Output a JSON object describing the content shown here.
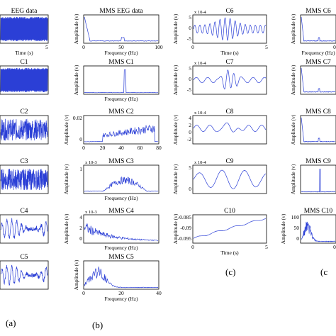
{
  "chart_data": {
    "type": "line",
    "colors": {
      "trace": "#2b3fd6",
      "axis": "#000000"
    },
    "panel_labels": [
      "(a)",
      "(b)",
      "(c)",
      "(c"
    ],
    "columns": [
      {
        "id": "a",
        "plots": [
          {
            "title": "EEG data",
            "xlabel": "Time (s)",
            "ylabel": "",
            "xticks": [
              "5"
            ],
            "yticks": [],
            "kind": "dense"
          },
          {
            "title": "C1",
            "xlabel": "",
            "ylabel": "",
            "xticks": [],
            "yticks": [],
            "kind": "dense"
          },
          {
            "title": "C2",
            "xlabel": "",
            "ylabel": "",
            "xticks": [],
            "yticks": [],
            "kind": "noise"
          },
          {
            "title": "C3",
            "xlabel": "",
            "ylabel": "",
            "xticks": [],
            "yticks": [],
            "kind": "noise"
          },
          {
            "title": "C4",
            "xlabel": "",
            "ylabel": "",
            "xticks": [],
            "yticks": [],
            "kind": "wave"
          },
          {
            "title": "C5",
            "xlabel": "",
            "ylabel": "",
            "xticks": [],
            "yticks": [],
            "kind": "wave"
          }
        ]
      },
      {
        "id": "b",
        "plots": [
          {
            "title": "MMS EEG data",
            "xlabel": "Frequency (Hz)",
            "ylabel": "Amplitude (v)",
            "xticks": [
              "0",
              "50",
              "100"
            ],
            "yticks": [],
            "exp": "",
            "kind": "spec_low"
          },
          {
            "title": "MMS C1",
            "xlabel": "Frequency (Hz)",
            "ylabel": "Amplitude (v)",
            "xticks": [],
            "yticks": [],
            "exp": "",
            "kind": "spike"
          },
          {
            "title": "MMS C2",
            "xlabel": "",
            "ylabel": "Amplitude (v)",
            "xticks": [
              "0",
              "20",
              "40",
              "60",
              "80"
            ],
            "yticks": [
              "0.02",
              "0"
            ],
            "exp": "",
            "kind": "band_high"
          },
          {
            "title": "MMS C3",
            "xlabel": "Frequency (Hz)",
            "ylabel": "Amplitude (v)",
            "xticks": [],
            "yticks": [
              "1"
            ],
            "exp": "x 10-3",
            "kind": "band_mid"
          },
          {
            "title": "MMS C4",
            "xlabel": "Frequency (Hz)",
            "ylabel": "Amplitude (v)",
            "xticks": [],
            "yticks": [
              "4",
              "2",
              "0"
            ],
            "exp": "x 10-3",
            "kind": "decay_mid"
          },
          {
            "title": "MMS C5",
            "xlabel": "Frequency (Hz)",
            "ylabel": "Amplitude (v)",
            "xticks": [
              "0",
              "20",
              "40"
            ],
            "yticks": [],
            "exp": "",
            "kind": "decay_low"
          }
        ]
      },
      {
        "id": "c",
        "plots": [
          {
            "title": "C6",
            "xlabel": "Time (s)",
            "ylabel": "Amplitude (v)",
            "xticks": [
              "0",
              "5"
            ],
            "yticks": [
              "5",
              "0",
              "-5"
            ],
            "exp": "x 10-4",
            "kind": "burst"
          },
          {
            "title": "C7",
            "xlabel": "",
            "ylabel": "Amplitude (v)",
            "xticks": [],
            "yticks": [
              "5",
              "0",
              "-5"
            ],
            "exp": "x 10-4",
            "kind": "burst_mid"
          },
          {
            "title": "C8",
            "xlabel": "",
            "ylabel": "Amplitude (v)",
            "xticks": [],
            "yticks": [
              "4",
              "2",
              "0",
              "-2"
            ],
            "exp": "x 10-4",
            "kind": "osc"
          },
          {
            "title": "C9",
            "xlabel": "",
            "ylabel": "Amplitude (v)",
            "xticks": [],
            "yticks": [
              "5",
              "0"
            ],
            "exp": "x 10-4",
            "kind": "slow"
          },
          {
            "title": "C10",
            "xlabel": "Time (s)",
            "ylabel": "Amplitude (v)",
            "xticks": [
              "0",
              "5"
            ],
            "yticks": [
              "-0.085",
              "-0.09",
              "-0.095"
            ],
            "exp": "",
            "kind": "trend"
          }
        ]
      },
      {
        "id": "d",
        "plots": [
          {
            "title": "MMS C6",
            "xlabel": "Frequency (Hz)",
            "ylabel": "Amplitude (v)",
            "xticks": [
              "0"
            ],
            "yticks": [],
            "exp": "",
            "kind": "spec_low"
          },
          {
            "title": "MMS C7",
            "xlabel": "",
            "ylabel": "Amplitude (v)",
            "xticks": [],
            "yticks": [],
            "exp": "",
            "kind": "spec_low"
          },
          {
            "title": "MMS C8",
            "xlabel": "",
            "ylabel": "Amplitude (v)",
            "xticks": [],
            "yticks": [],
            "exp": "",
            "kind": "spec_low"
          },
          {
            "title": "MMS C9",
            "xlabel": "",
            "ylabel": "Amplitude (v)",
            "xticks": [],
            "yticks": [],
            "exp": "",
            "kind": "spike"
          },
          {
            "title": "MMS C10",
            "xlabel": "",
            "ylabel": "Amplitude (v)",
            "xticks": [
              "0"
            ],
            "yticks": [
              "100",
              "50",
              "0"
            ],
            "exp": "",
            "kind": "decay_low"
          }
        ]
      }
    ]
  }
}
